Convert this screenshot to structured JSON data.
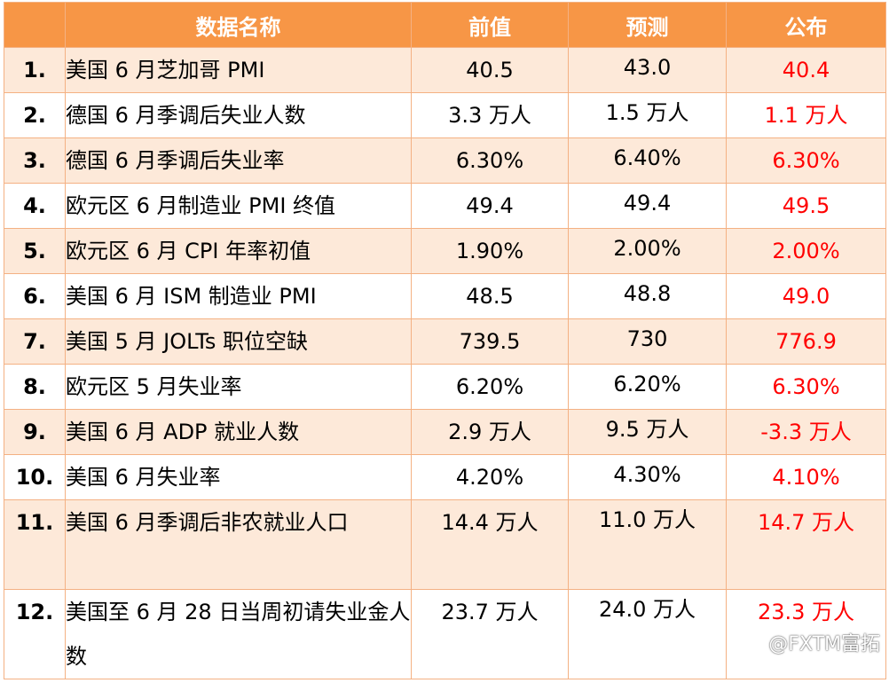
{
  "header": {
    "col_name": "数据名称",
    "col_prev": "前值",
    "col_forecast": "预测",
    "col_actual": "公布"
  },
  "rows": [
    {
      "num": "1.",
      "name": "美国 6 月芝加哥 PMI",
      "prev": "40.5",
      "forecast": "43.0",
      "actual": "40.4"
    },
    {
      "num": "2.",
      "name": "德国 6 月季调后失业人数",
      "prev": "3.3 万人",
      "forecast": "1.5 万人",
      "actual": "1.1 万人"
    },
    {
      "num": "3.",
      "name": "德国 6 月季调后失业率",
      "prev": "6.30%",
      "forecast": "6.40%",
      "actual": "6.30%"
    },
    {
      "num": "4.",
      "name": "欧元区 6 月制造业 PMI 终值",
      "prev": "49.4",
      "forecast": "49.4",
      "actual": "49.5"
    },
    {
      "num": "5.",
      "name": "欧元区 6 月 CPI 年率初值",
      "prev": "1.90%",
      "forecast": "2.00%",
      "actual": "2.00%"
    },
    {
      "num": "6.",
      "name": "美国 6 月 ISM 制造业 PMI",
      "prev": "48.5",
      "forecast": "48.8",
      "actual": "49.0"
    },
    {
      "num": "7.",
      "name": "美国 5 月 JOLTs 职位空缺",
      "prev": "739.5",
      "forecast": "730",
      "actual": "776.9"
    },
    {
      "num": "8.",
      "name": "欧元区 5 月失业率",
      "prev": "6.20%",
      "forecast": "6.20%",
      "actual": "6.30%"
    },
    {
      "num": "9.",
      "name": "美国 6 月 ADP 就业人数",
      "prev": "2.9 万人",
      "forecast": "9.5 万人",
      "actual": "-3.3 万人"
    },
    {
      "num": "10.",
      "name": "美国 6 月失业率",
      "prev": "4.20%",
      "forecast": "4.30%",
      "actual": "4.10%"
    },
    {
      "num": "11.",
      "name": "美国 6 月季调后非农就业人口",
      "prev": "14.4 万人",
      "forecast": "11.0 万人",
      "actual": "14.7 万人"
    },
    {
      "num": "12.",
      "name": "美国至 6 月 28 日当周初请失业金人数",
      "prev": "23.7 万人",
      "forecast": "24.0 万人",
      "actual": "23.3 万人"
    }
  ],
  "watermark": "@FXTM富拓",
  "colors": {
    "header_bg": "#f79646",
    "odd_row_bg": "#fde9d9",
    "actual_text": "#ff0000",
    "border": "#f4b183"
  }
}
